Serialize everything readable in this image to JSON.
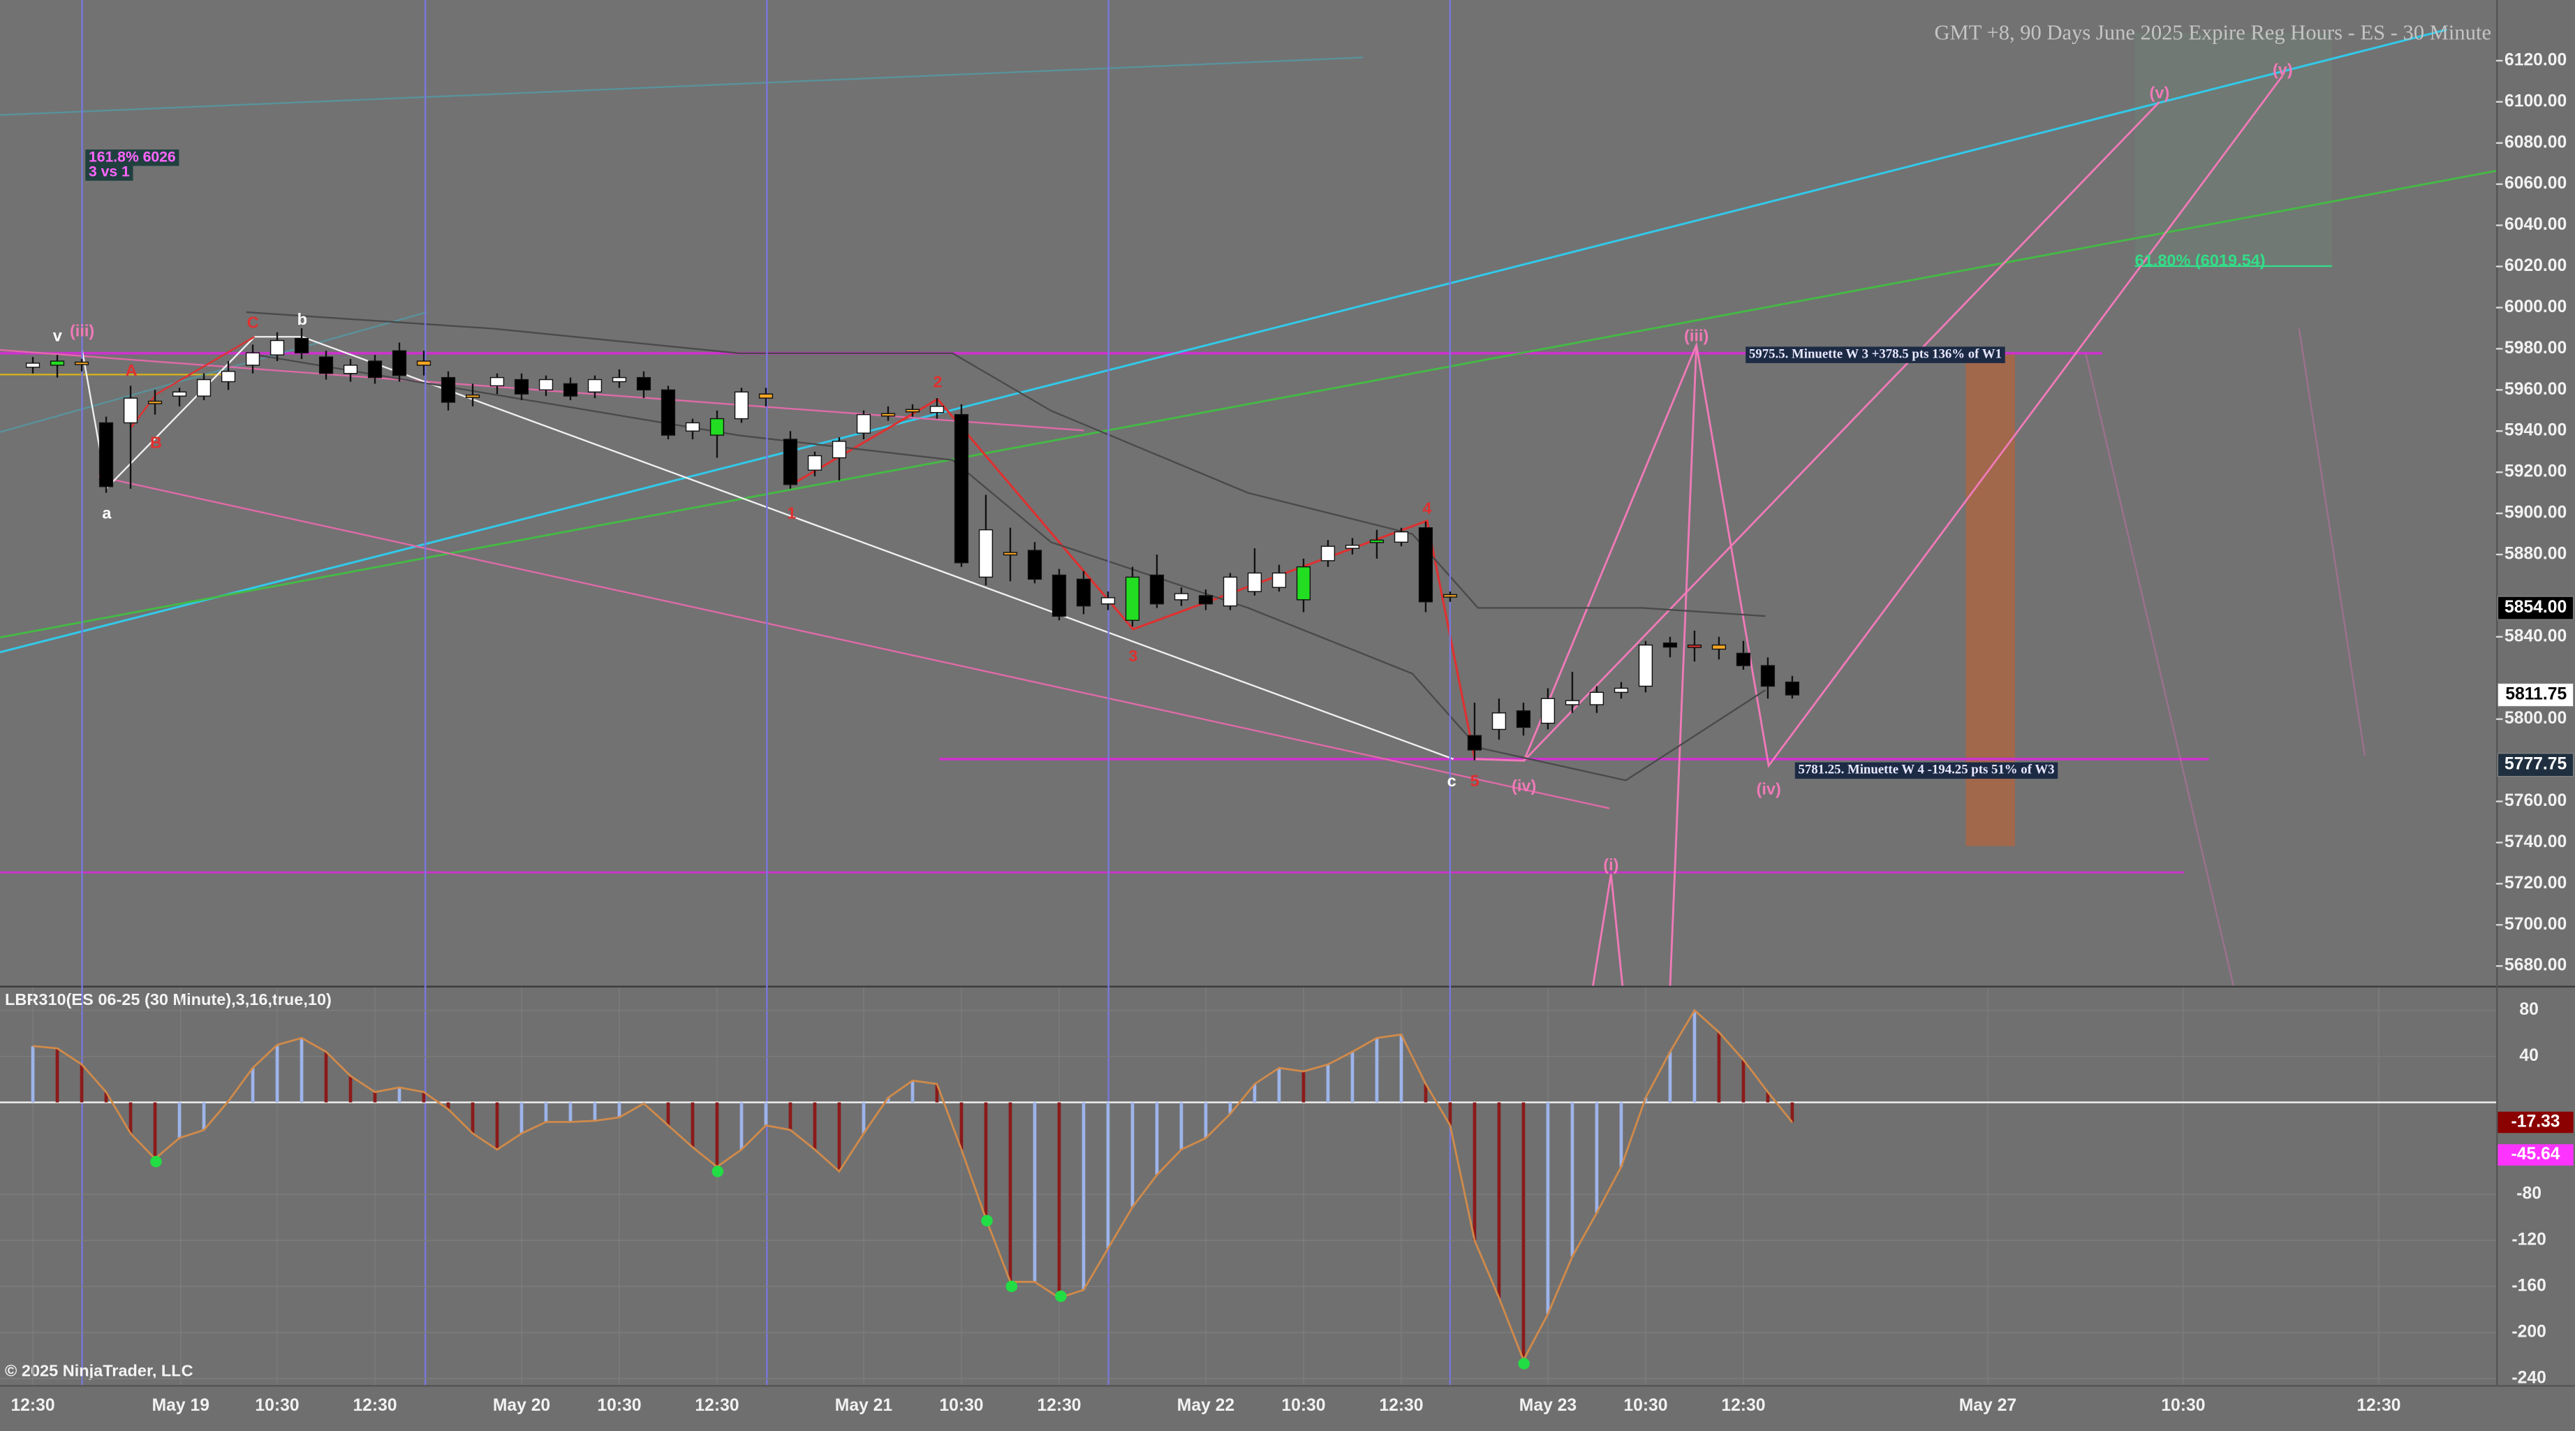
{
  "chart_data": [
    {
      "type": "candlestick",
      "title": "GMT +8, 90 Days June 2025 Expire Reg Hours - ES - 30 Minute",
      "open": [
        5971,
        5972,
        5973,
        5944,
        5944,
        5954,
        5957,
        5957,
        5964,
        5972,
        5977,
        5985,
        5976,
        5968,
        5974,
        5979,
        5972,
        5966,
        5957,
        5962,
        5965,
        5960,
        5963,
        5959,
        5964,
        5966,
        5960,
        5940,
        5938,
        5946,
        5956,
        5936,
        5921,
        5927,
        5939,
        5948,
        5950,
        5949,
        5948,
        5869,
        5880,
        5882,
        5870,
        5868,
        5856,
        5848,
        5870,
        5858,
        5860,
        5855,
        5862,
        5864,
        5858,
        5877,
        5883,
        5886,
        5886,
        5893,
        5860,
        5792,
        5795,
        5804,
        5798,
        5807,
        5807,
        5813,
        5816,
        5837,
        5836,
        5836,
        5832,
        5826,
        5818
      ],
      "high": [
        5976,
        5977,
        5975,
        5947,
        5962,
        5960,
        5961,
        5968,
        5974,
        5982,
        5988,
        5990,
        5979,
        5975,
        5977,
        5983,
        5979,
        5969,
        5963,
        5968,
        5968,
        5967,
        5966,
        5967,
        5970,
        5969,
        5962,
        5946,
        5950,
        5961,
        5961,
        5940,
        5930,
        5937,
        5950,
        5952,
        5953,
        5956,
        5953,
        5909,
        5893,
        5886,
        5873,
        5872,
        5862,
        5874,
        5880,
        5864,
        5863,
        5871,
        5883,
        5875,
        5878,
        5887,
        5888,
        5892,
        5893,
        5896,
        5862,
        5808,
        5810,
        5808,
        5815,
        5823,
        5816,
        5818,
        5838,
        5840,
        5843,
        5840,
        5838,
        5830,
        5821
      ],
      "low": [
        5968,
        5966,
        5969,
        5910,
        5912,
        5948,
        5952,
        5955,
        5960,
        5968,
        5974,
        5975,
        5965,
        5964,
        5963,
        5964,
        5967,
        5950,
        5952,
        5958,
        5955,
        5957,
        5955,
        5956,
        5961,
        5956,
        5936,
        5936,
        5927,
        5944,
        5952,
        5912,
        5918,
        5916,
        5936,
        5945,
        5947,
        5946,
        5874,
        5865,
        5867,
        5866,
        5848,
        5851,
        5853,
        5845,
        5854,
        5855,
        5853,
        5853,
        5860,
        5862,
        5852,
        5874,
        5880,
        5878,
        5884,
        5852,
        5857,
        5780,
        5790,
        5792,
        5795,
        5803,
        5803,
        5810,
        5813,
        5830,
        5828,
        5829,
        5824,
        5810,
        5810
      ],
      "close": [
        5973,
        5974,
        5973.5,
        5913,
        5956,
        5954.5,
        5959,
        5965,
        5969,
        5978,
        5984,
        5978,
        5968,
        5972,
        5966,
        5967,
        5974,
        5954,
        5957.5,
        5966,
        5958,
        5965,
        5957,
        5965,
        5966,
        5960,
        5938,
        5944,
        5946,
        5959,
        5958,
        5914,
        5928,
        5935,
        5948,
        5948.5,
        5950.5,
        5952,
        5876,
        5892,
        5881,
        5868,
        5850,
        5855,
        5859,
        5869,
        5856,
        5861,
        5856,
        5869,
        5871,
        5871,
        5874,
        5884,
        5884.5,
        5887,
        5891,
        5857,
        5860.5,
        5785,
        5803,
        5796,
        5810,
        5809,
        5813,
        5815,
        5836,
        5835,
        5835.5,
        5834,
        5826,
        5816,
        5811.75
      ],
      "colors": [
        "#ffffff",
        "#22dd22",
        "#f5a623",
        "#000000",
        "#ffffff",
        "#f5a623",
        "#ffffff",
        "#ffffff",
        "#ffffff",
        "#ffffff",
        "#ffffff",
        "#000000",
        "#000000",
        "#ffffff",
        "#000000",
        "#000000",
        "#f5a623",
        "#000000",
        "#f5a623",
        "#ffffff",
        "#000000",
        "#ffffff",
        "#000000",
        "#ffffff",
        "#ffffff",
        "#000000",
        "#000000",
        "#ffffff",
        "#22dd22",
        "#ffffff",
        "#f5a623",
        "#000000",
        "#ffffff",
        "#ffffff",
        "#ffffff",
        "#f5a623",
        "#f5a623",
        "#ffffff",
        "#000000",
        "#ffffff",
        "#f5a623",
        "#000000",
        "#000000",
        "#000000",
        "#ffffff",
        "#22dd22",
        "#000000",
        "#ffffff",
        "#000000",
        "#ffffff",
        "#ffffff",
        "#ffffff",
        "#22dd22",
        "#ffffff",
        "#ffffff",
        "#22dd22",
        "#ffffff",
        "#000000",
        "#f5a623",
        "#000000",
        "#ffffff",
        "#000000",
        "#ffffff",
        "#ffffff",
        "#ffffff",
        "#ffffff",
        "#ffffff",
        "#000000",
        "#e03030",
        "#f5a623",
        "#000000",
        "#000000",
        "#000000"
      ],
      "xlim": [
        -1.344,
        100.806
      ],
      "xticks": [
        {
          "value": 0,
          "label": "12:30"
        },
        {
          "value": 6.05,
          "label": "May 19"
        },
        {
          "value": 10,
          "label": "10:30"
        },
        {
          "value": 14,
          "label": "12:30"
        },
        {
          "value": 20,
          "label": "May 20"
        },
        {
          "value": 24,
          "label": "10:30"
        },
        {
          "value": 28,
          "label": "12:30"
        },
        {
          "value": 34,
          "label": "May 21"
        },
        {
          "value": 38,
          "label": "10:30"
        },
        {
          "value": 42,
          "label": "12:30"
        },
        {
          "value": 48,
          "label": "May 22"
        },
        {
          "value": 52,
          "label": "10:30"
        },
        {
          "value": 56,
          "label": "12:30"
        },
        {
          "value": 62,
          "label": "May 23"
        },
        {
          "value": 66,
          "label": "10:30"
        },
        {
          "value": 70,
          "label": "12:30"
        },
        {
          "value": 80,
          "label": "May 27"
        },
        {
          "value": 88,
          "label": "10:30"
        },
        {
          "value": 96,
          "label": "12:30"
        }
      ],
      "ylim": [
        5670.4,
        6149.5
      ],
      "yticks": [
        {
          "value": 5680,
          "label": "5680.00"
        },
        {
          "value": 5700,
          "label": "5700.00"
        },
        {
          "value": 5720,
          "label": "5720.00"
        },
        {
          "value": 5740,
          "label": "5740.00"
        },
        {
          "value": 5760,
          "label": "5760.00"
        },
        {
          "value": 5800,
          "label": "5800.00"
        },
        {
          "value": 5840,
          "label": "5840.00"
        },
        {
          "value": 5880,
          "label": "5880.00"
        },
        {
          "value": 5900,
          "label": "5900.00"
        },
        {
          "value": 5920,
          "label": "5920.00"
        },
        {
          "value": 5940,
          "label": "5940.00"
        },
        {
          "value": 5960,
          "label": "5960.00"
        },
        {
          "value": 5980,
          "label": "5980.00"
        },
        {
          "value": 6000,
          "label": "6000.00"
        },
        {
          "value": 6020,
          "label": "6020.00"
        },
        {
          "value": 6040,
          "label": "6040.00"
        },
        {
          "value": 6060,
          "label": "6060.00"
        },
        {
          "value": 6080,
          "label": "6080.00"
        },
        {
          "value": 6100,
          "label": "6100.00"
        },
        {
          "value": 6120,
          "label": "6120.00"
        }
      ],
      "price_tags": [
        {
          "value": 5854,
          "label": "5854.00",
          "color": "#000000"
        },
        {
          "value": 5811.75,
          "label": "5811.75",
          "color": "#ffffff"
        },
        {
          "value": 5777.75,
          "label": "5777.75",
          "color": "#1f2f3f"
        }
      ],
      "annotations": [
        "161.8% 6026",
        "3 vs 1",
        "v",
        "(iii)",
        "C",
        "b",
        "A",
        "B",
        "a",
        "1",
        "2",
        "3",
        "4",
        "5",
        "c",
        "(iv)",
        "(i)",
        "(iii)",
        "(iv)",
        "(v)",
        "(v)",
        "61.80% (6019.54)",
        "5975.5.  Minuette W 3 +378.5 pts 136% of W1",
        "5781.25.  Minuette W 4 -194.25 pts 51% of W3"
      ]
    },
    {
      "type": "oscillator",
      "title": "LBR310(ES 06-25 (30 Minute),3,16,true,10)",
      "values": [
        49,
        47,
        33,
        9,
        -27,
        -49,
        -31,
        -24,
        1,
        30,
        50,
        56,
        44,
        23,
        9,
        13,
        9,
        -6,
        -27,
        -41,
        -27,
        -17,
        -17,
        -16,
        -13,
        -1,
        -20,
        -39,
        -56,
        -41,
        -20,
        -24,
        -41,
        -60,
        -27,
        4,
        19,
        16,
        -41,
        -101,
        -156,
        -156,
        -170,
        -163,
        -127,
        -91,
        -63,
        -41,
        -31,
        -10,
        16,
        30,
        27,
        33,
        44,
        56,
        59,
        16,
        -20,
        -120,
        -170,
        -224,
        -184,
        -134,
        -96,
        -56,
        4,
        44,
        80,
        61,
        37,
        9,
        -17.33
      ],
      "color": "#d08a4a",
      "up_color": "#9db4ea",
      "down_color": "#8b1a1a",
      "value_tag_color": "#8b0000",
      "signal_value": -45.64,
      "signal_color": "#ff33ff",
      "ylim": [
        -245.7,
        101.4
      ],
      "yticks": [
        80,
        40,
        -80,
        -120,
        -160,
        -200,
        -240
      ]
    }
  ],
  "footer": "© 2025 NinjaTrader, LLC"
}
